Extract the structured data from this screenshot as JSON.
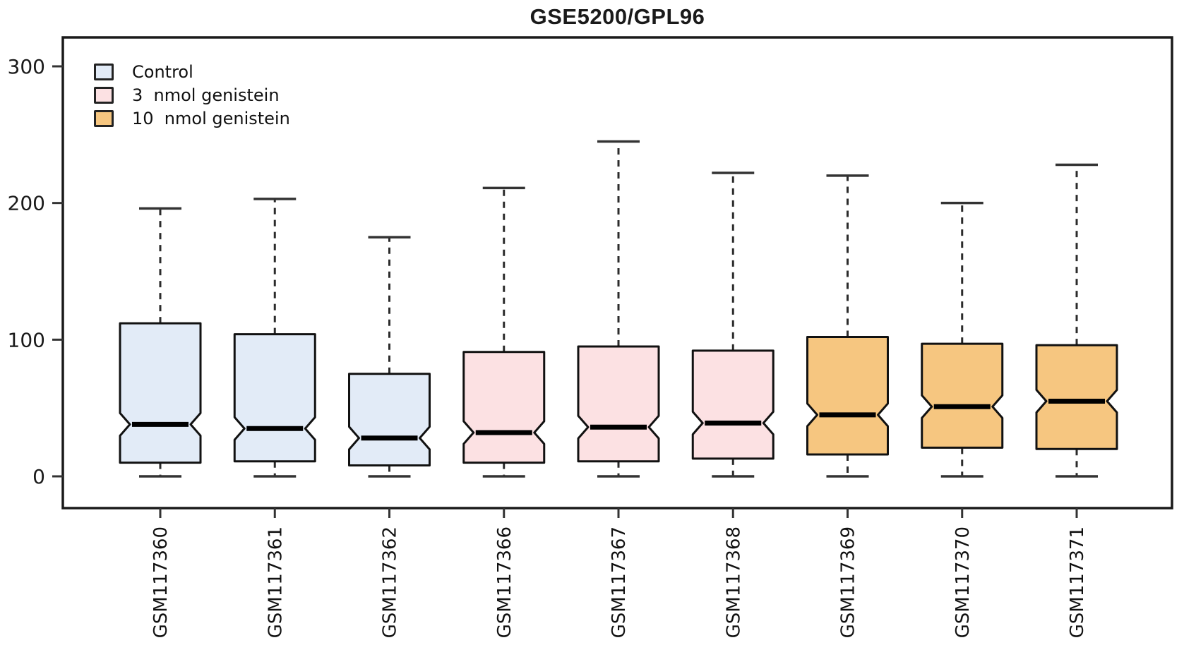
{
  "title": "GSE5200/GPL96",
  "chart_data": {
    "type": "boxplot",
    "title": "GSE5200/GPL96",
    "xlabel": "",
    "ylabel": "",
    "ylim": [
      0,
      300
    ],
    "yticks": [
      0,
      100,
      200,
      300
    ],
    "grid": false,
    "legend_position": "top-left-inside",
    "groups": [
      {
        "name": "Control",
        "color": "#e2ebf7"
      },
      {
        "name": "3  nmol genistein",
        "color": "#fce1e3"
      },
      {
        "name": "10  nmol genistein",
        "color": "#f6c680"
      }
    ],
    "boxes": [
      {
        "sample": "GSM117360",
        "group": 0,
        "whisker_low": 0,
        "q1": 10,
        "median": 38,
        "q3": 112,
        "whisker_high": 196
      },
      {
        "sample": "GSM117361",
        "group": 0,
        "whisker_low": 0,
        "q1": 11,
        "median": 35,
        "q3": 104,
        "whisker_high": 203
      },
      {
        "sample": "GSM117362",
        "group": 0,
        "whisker_low": 0,
        "q1": 8,
        "median": 28,
        "q3": 75,
        "whisker_high": 175
      },
      {
        "sample": "GSM117366",
        "group": 1,
        "whisker_low": 0,
        "q1": 10,
        "median": 32,
        "q3": 91,
        "whisker_high": 211
      },
      {
        "sample": "GSM117367",
        "group": 1,
        "whisker_low": 0,
        "q1": 11,
        "median": 36,
        "q3": 95,
        "whisker_high": 245
      },
      {
        "sample": "GSM117368",
        "group": 1,
        "whisker_low": 0,
        "q1": 13,
        "median": 39,
        "q3": 92,
        "whisker_high": 222
      },
      {
        "sample": "GSM117369",
        "group": 2,
        "whisker_low": 0,
        "q1": 16,
        "median": 45,
        "q3": 102,
        "whisker_high": 220
      },
      {
        "sample": "GSM117370",
        "group": 2,
        "whisker_low": 0,
        "q1": 21,
        "median": 51,
        "q3": 97,
        "whisker_high": 200
      },
      {
        "sample": "GSM117371",
        "group": 2,
        "whisker_low": 0,
        "q1": 20,
        "median": 55,
        "q3": 96,
        "whisker_high": 228
      }
    ]
  }
}
